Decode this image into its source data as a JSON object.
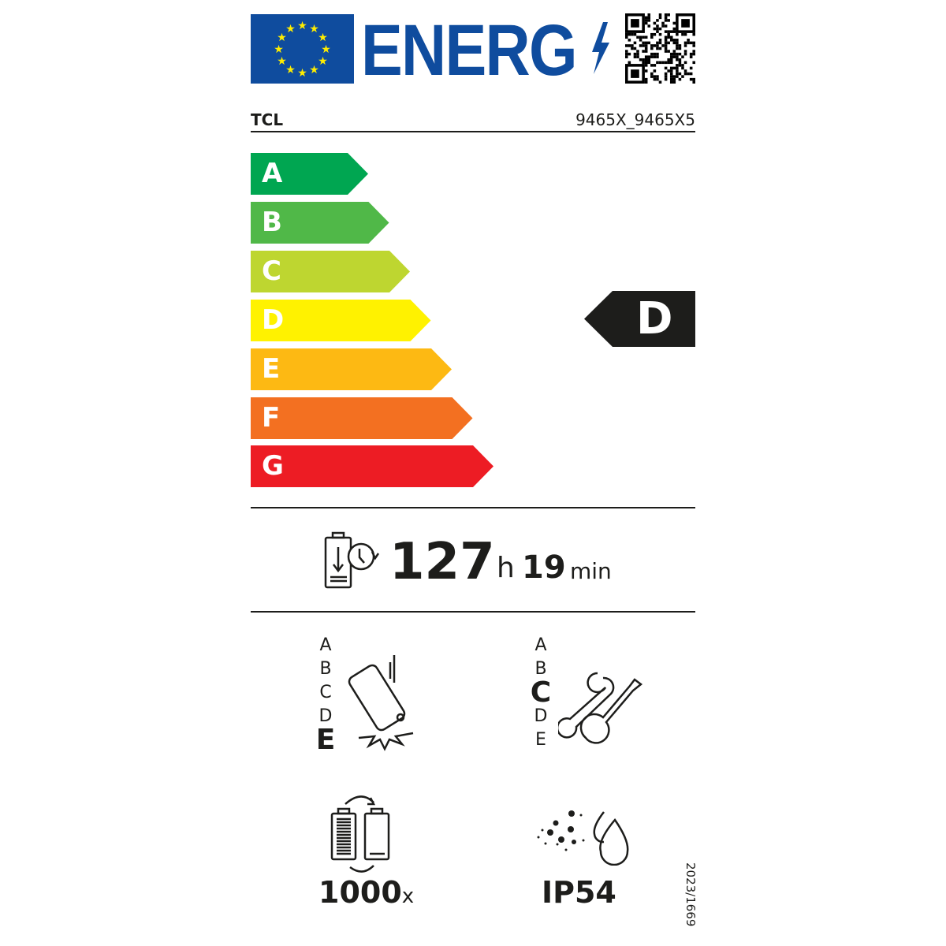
{
  "header": {
    "logo_text": "ENERG",
    "flag": "eu-flag-icon",
    "qr": "qr-code-icon"
  },
  "supplier": "TCL",
  "model": "9465X_9465X5",
  "energy_scale": {
    "classes": [
      {
        "label": "A",
        "color": "#00a651"
      },
      {
        "label": "B",
        "color": "#50b848"
      },
      {
        "label": "C",
        "color": "#bed630"
      },
      {
        "label": "D",
        "color": "#fff200"
      },
      {
        "label": "E",
        "color": "#fdb913"
      },
      {
        "label": "F",
        "color": "#f37021"
      },
      {
        "label": "G",
        "color": "#ed1c24"
      }
    ],
    "rating": "D"
  },
  "endurance": {
    "hours": "127",
    "h_unit": "h",
    "minutes": "19",
    "min_unit": "min"
  },
  "drop_resistance": {
    "scale": [
      "A",
      "B",
      "C",
      "D",
      "E"
    ],
    "rating": "E"
  },
  "repairability": {
    "scale": [
      "A",
      "B",
      "C",
      "D",
      "E"
    ],
    "rating": "C"
  },
  "battery_cycles": {
    "value": "1000",
    "unit": "x"
  },
  "ingress": {
    "value": "IP54"
  },
  "regulation": "2023/1669"
}
